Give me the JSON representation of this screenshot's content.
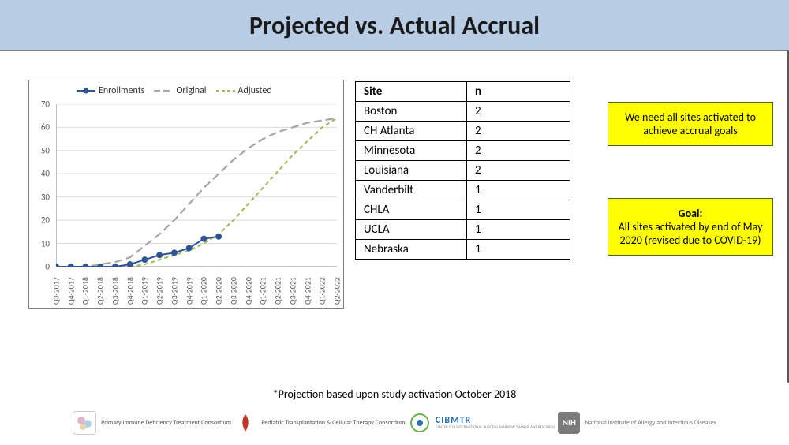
{
  "header": {
    "title": "Projected vs. Actual Accrual"
  },
  "chart": {
    "type": "line",
    "legend": {
      "items": [
        {
          "label": "Enrollments",
          "color": "#2f5597",
          "style": "solid",
          "marker": true
        },
        {
          "label": "Original",
          "color": "#a6a6a6",
          "style": "long-dash",
          "marker": false
        },
        {
          "label": "Adjusted",
          "color": "#9bbb59",
          "style": "short-dash",
          "marker": false
        }
      ],
      "font_size": 12
    },
    "x_categories": [
      "Q3-2017",
      "Q4-2017",
      "Q1-2018",
      "Q2-2018",
      "Q3-2018",
      "Q4-2018",
      "Q1-2019",
      "Q2-2019",
      "Q3-2019",
      "Q4-2019",
      "Q1-2020",
      "Q2-2020",
      "Q3-2020",
      "Q4-2020",
      "Q1-2021",
      "Q2-2021",
      "Q3-2021",
      "Q4-2021",
      "Q1-2022",
      "Q2-2022"
    ],
    "ylim": [
      0,
      70
    ],
    "ytick_step": 10,
    "series": {
      "enrollments": {
        "color": "#2f5597",
        "line_width": 2,
        "marker": "circle",
        "marker_size": 4,
        "data": [
          0,
          0,
          0,
          0,
          0,
          1,
          3,
          5,
          6,
          8,
          12,
          13
        ]
      },
      "original": {
        "color": "#a6a6a6",
        "line_width": 2.2,
        "dash": "10,5",
        "data": [
          0,
          0,
          0,
          1,
          2,
          4,
          9,
          14,
          20,
          27,
          34,
          40,
          46,
          51,
          55,
          58,
          60,
          62,
          63,
          64
        ]
      },
      "adjusted": {
        "color": "#9bbb59",
        "line_width": 2,
        "dash": "5,4",
        "data": [
          null,
          null,
          null,
          null,
          null,
          0,
          1,
          3,
          5,
          7,
          10,
          14,
          20,
          27,
          34,
          41,
          48,
          54,
          60,
          64
        ]
      }
    },
    "background_color": "#ffffff",
    "grid_color": "#d9d9d9",
    "axis_color": "#808080",
    "tick_font_size": 11
  },
  "table": {
    "columns": [
      "Site",
      "n"
    ],
    "rows": [
      [
        "Boston",
        "2"
      ],
      [
        "CH Atlanta",
        "2"
      ],
      [
        "Minnesota",
        "2"
      ],
      [
        "Louisiana",
        "2"
      ],
      [
        "Vanderbilt",
        "1"
      ],
      [
        "CHLA",
        "1"
      ],
      [
        "UCLA",
        "1"
      ],
      [
        "Nebraska",
        "1"
      ]
    ]
  },
  "callouts": {
    "top": {
      "text": "We need all sites activated to achieve accrual goals"
    },
    "bottom": {
      "heading": "Goal:",
      "text": "All sites activated by end of May 2020 (revised due to COVID-19)"
    }
  },
  "note": "*Projection based upon study activation October 2018",
  "logos": {
    "a": "Primary Immune Deficiency Treatment Consortium",
    "b": "Pediatric Transplantation & Cellular Therapy Consortium",
    "c": "CIBMTR",
    "c_sub": "CENTER FOR INTERNATIONAL BLOOD & MARROW TRANSPLANT RESEARCH",
    "d": "NIH",
    "d_sub": "National Institute of Allergy and Infectious Diseases"
  },
  "colors": {
    "header_band": "#b8cce4",
    "callout_bg": "#ffff00",
    "callout_border": "#4f6228"
  }
}
